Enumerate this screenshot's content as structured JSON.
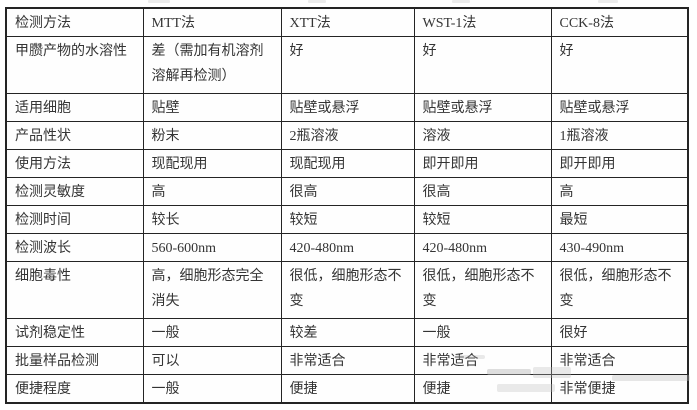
{
  "table": {
    "columns": [
      "检测方法",
      "MTT法",
      "XTT法",
      "WST-1法",
      "CCK-8法"
    ],
    "rows": [
      {
        "label": "甲臜产物的水溶性",
        "tall": true,
        "bold_index": null,
        "values": [
          "差（需加有机溶剂溶解再检测）",
          "好",
          "好",
          "好"
        ]
      },
      {
        "label": "适用细胞",
        "tall": false,
        "bold_index": null,
        "values": [
          "贴壁",
          "贴壁或悬浮",
          "贴壁或悬浮",
          "贴壁或悬浮"
        ]
      },
      {
        "label": "产品性状",
        "tall": false,
        "bold_index": null,
        "values": [
          "粉末",
          "2瓶溶液",
          "溶液",
          "1瓶溶液"
        ]
      },
      {
        "label": "使用方法",
        "tall": false,
        "bold_index": null,
        "values": [
          "现配现用",
          "现配现用",
          "即开即用",
          "即开即用"
        ]
      },
      {
        "label": "检测灵敏度",
        "tall": false,
        "bold_index": null,
        "values": [
          "高",
          "很高",
          "很高",
          "高"
        ]
      },
      {
        "label": "检测时间",
        "tall": false,
        "bold_index": null,
        "values": [
          "较长",
          "较短",
          "较短",
          "最短"
        ]
      },
      {
        "label": "检测波长",
        "tall": false,
        "bold_index": null,
        "values": [
          "560-600nm",
          "420-480nm",
          "420-480nm",
          "430-490nm"
        ]
      },
      {
        "label": "细胞毒性",
        "tall": true,
        "bold_index": null,
        "values": [
          "高，细胞形态完全消失",
          "很低，细胞形态不变",
          "很低，细胞形态不变",
          "很低，细胞形态不变"
        ]
      },
      {
        "label": "试剂稳定性",
        "tall": false,
        "bold_index": null,
        "values": [
          "一般",
          "较差",
          "一般",
          "很好"
        ]
      },
      {
        "label": "批量样品检测",
        "tall": false,
        "bold_index": null,
        "values": [
          "可以",
          "非常适合",
          "非常适合",
          "非常适合"
        ]
      },
      {
        "label": "便捷程度",
        "tall": false,
        "bold_index": 3,
        "values": [
          "一般",
          "便捷",
          "便捷",
          "非常便捷"
        ]
      }
    ]
  },
  "colors": {
    "border": "#242424",
    "text": "#343434",
    "bold_text": "#161616",
    "background": "#ffffff",
    "watermark": "#b9b9b9"
  }
}
